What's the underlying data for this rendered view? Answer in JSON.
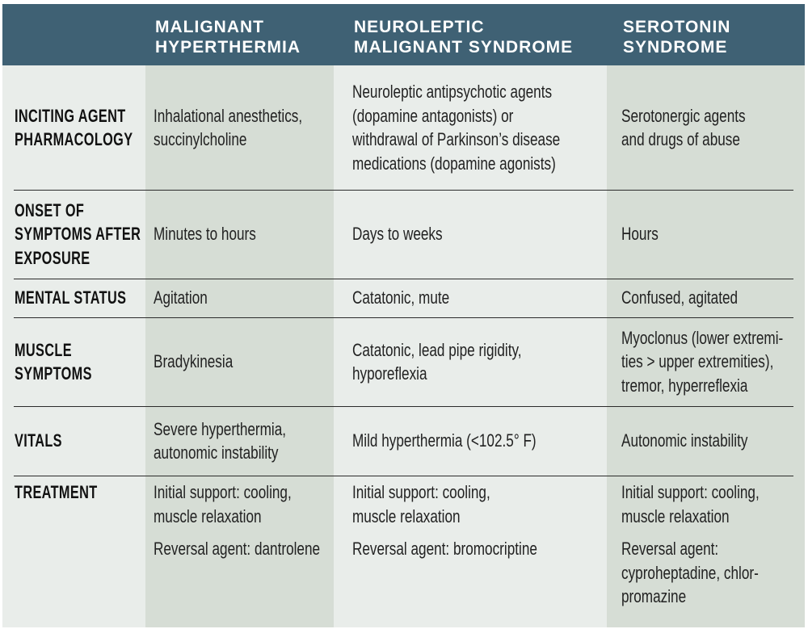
{
  "colors": {
    "header": "#3f6174",
    "background": "#e9edea",
    "shaded_column": "#d6ddd5"
  },
  "header": {
    "columns": [
      [
        "MALIGNANT",
        "HYPERTHERMIA"
      ],
      [
        "NEUROLEPTIC",
        "MALIGNANT SYNDROME"
      ],
      [
        "SEROTONIN",
        "SYNDROME"
      ]
    ]
  },
  "rows": [
    {
      "label": [
        "INCITING AGENT",
        "PHARMACOLOGY"
      ],
      "cells": [
        [
          [
            "Inhalational anesthetics,",
            "succinylcholine"
          ]
        ],
        [
          [
            "Neuroleptic antipsychotic agents",
            "(dopamine antagonists) or",
            "withdrawal of Parkinson’s disease",
            "medications (dopamine agonists)"
          ]
        ],
        [
          [
            "Serotonergic agents",
            "and drugs of abuse"
          ]
        ]
      ]
    },
    {
      "label": [
        "ONSET OF",
        "SYMPTOMS AFTER",
        "EXPOSURE"
      ],
      "cells": [
        [
          [
            "Minutes to hours"
          ]
        ],
        [
          [
            "Days to weeks"
          ]
        ],
        [
          [
            "Hours"
          ]
        ]
      ]
    },
    {
      "label": [
        "MENTAL STATUS"
      ],
      "cells": [
        [
          [
            "Agitation"
          ]
        ],
        [
          [
            "Catatonic, mute"
          ]
        ],
        [
          [
            "Confused, agitated"
          ]
        ]
      ]
    },
    {
      "label": [
        "MUSCLE",
        "SYMPTOMS"
      ],
      "cells": [
        [
          [
            "Bradykinesia"
          ]
        ],
        [
          [
            "Catatonic, lead pipe rigidity,",
            "hyporeflexia"
          ]
        ],
        [
          [
            "Myoclonus (lower extremi-",
            "ties > upper extremities),",
            "tremor, hyperreflexia"
          ]
        ]
      ]
    },
    {
      "label": [
        "VITALS"
      ],
      "cells": [
        [
          [
            "Severe hyperthermia,",
            "autonomic instability"
          ]
        ],
        [
          [
            "Mild hyperthermia (<102.5° F)"
          ]
        ],
        [
          [
            "Autonomic instability"
          ]
        ]
      ]
    },
    {
      "label": [
        "TREATMENT"
      ],
      "cells": [
        [
          [
            "Initial support: cooling,",
            "muscle relaxation"
          ],
          [
            "Reversal agent: dantrolene"
          ]
        ],
        [
          [
            "Initial support: cooling,",
            "muscle relaxation"
          ],
          [
            "Reversal agent: bromocriptine"
          ]
        ],
        [
          [
            "Initial support: cooling,",
            "muscle relaxation"
          ],
          [
            "Reversal agent:",
            "cyproheptadine, chlor-",
            "promazine"
          ]
        ]
      ]
    }
  ]
}
